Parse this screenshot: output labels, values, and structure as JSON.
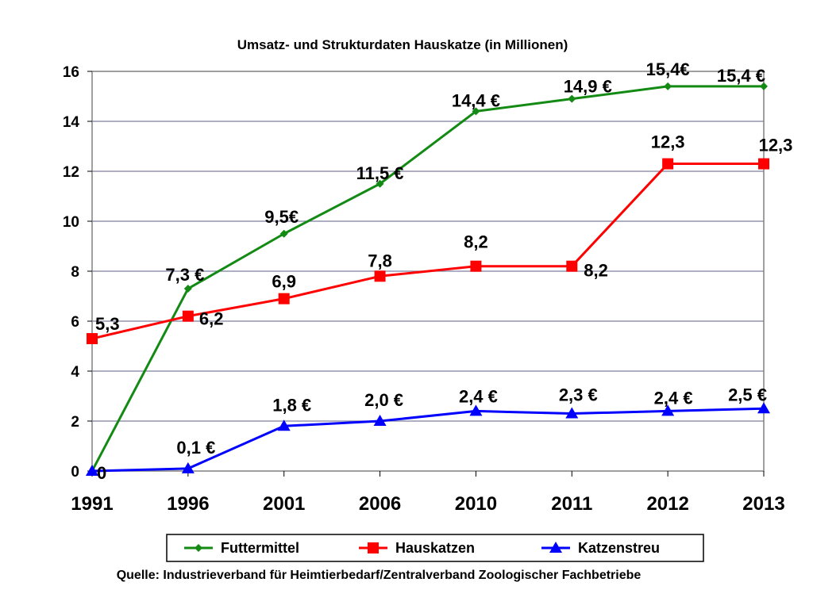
{
  "chart_data": {
    "type": "line",
    "title": "Umsatz- und Strukturdaten Hauskatze (in Millionen)",
    "source": "Quelle: Industrieverband für Heimtierbedarf/Zentralverband Zoologischer Fachbetriebe",
    "categories": [
      "1991",
      "1996",
      "2001",
      "2006",
      "2010",
      "2011",
      "2012",
      "2013"
    ],
    "ylim": [
      0,
      16
    ],
    "yticks": [
      "0",
      "2",
      "4",
      "6",
      "8",
      "10",
      "12",
      "14",
      "16"
    ],
    "grid": true,
    "legend_position": "bottom",
    "series": [
      {
        "name": "Futtermittel",
        "color": "#138a13",
        "marker": "diamond",
        "values": [
          0,
          7.3,
          9.5,
          11.5,
          14.4,
          14.9,
          15.4,
          15.4
        ],
        "labels": [
          "",
          "7,3 €",
          "9,5€",
          "11,5 €",
          "14,4 €",
          "14,9 €",
          "15,4€",
          "15,4 €"
        ]
      },
      {
        "name": "Hauskatzen",
        "color": "#ff0000",
        "marker": "square",
        "values": [
          5.3,
          6.2,
          6.9,
          7.8,
          8.2,
          8.2,
          12.3,
          12.3
        ],
        "labels": [
          "5,3",
          "6,2",
          "6,9",
          "7,8",
          "8,2",
          "8,2",
          "12,3",
          "12,3"
        ]
      },
      {
        "name": "Katzenstreu",
        "color": "#0000ff",
        "marker": "triangle",
        "values": [
          0,
          0.1,
          1.8,
          2.0,
          2.4,
          2.3,
          2.4,
          2.5
        ],
        "labels": [
          "0",
          "0,1 €",
          "1,8 €",
          "2,0 €",
          "2,4 €",
          "2,3 €",
          "2,4 €",
          "2,5 €"
        ]
      }
    ]
  }
}
